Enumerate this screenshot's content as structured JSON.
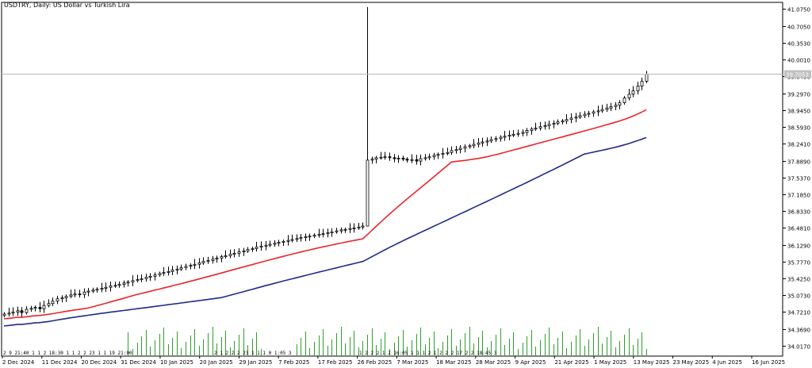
{
  "header": {
    "title": "USDTRY, Daily:  US Dollar vs Turkish Lira"
  },
  "chart_data": {
    "type": "candlestick",
    "title": "USDTRY, Daily:  US Dollar vs Turkish Lira",
    "price_axis_ticks": [
      "41.0750",
      "40.7050",
      "40.3530",
      "40.0010",
      "39.6490",
      "39.2970",
      "38.9450",
      "38.5930",
      "38.2410",
      "37.8890",
      "37.5370",
      "37.1850",
      "36.8330",
      "36.4810",
      "36.1290",
      "35.7770",
      "35.4250",
      "35.0730",
      "34.7210",
      "34.3690",
      "34.0170"
    ],
    "date_axis_labels": [
      "2 Dec 2024",
      "11 Dec 2024",
      "20 Dec 2024",
      "31 Dec 2024",
      "10 Jan 2025",
      "20 Jan 2025",
      "29 Jan 2025",
      "7 Feb 2025",
      "17 Feb 2025",
      "26 Feb 2025",
      "7 Mar 2025",
      "18 Mar 2025",
      "28 Mar 2025",
      "9 Apr 2025",
      "21 Apr 2025",
      "1 May 2025",
      "13 May 2025",
      "23 May 2025",
      "4 Jun 2025",
      "16 Jun 2025"
    ],
    "current_price_label": "39.7053",
    "current_price": 39.7053,
    "ylim": [
      33.8,
      41.2
    ],
    "grid": false,
    "indicators": [
      {
        "type": "moving-average",
        "color": "#e8262d"
      },
      {
        "type": "moving-average",
        "color": "#1f2a8c"
      }
    ],
    "volume_color": "#2e9e2e",
    "bar_group_labels": [
      "2 9 21:40 1 1 2 18:30 1 1 2 2 23 1 1 19 21:00",
      "2 1 2 2 2 23 1 1 1 0 1:05 3",
      "1 2 2 2 1 2 16:05 1 1 1 2 1 2 2 2 17 2 2 18:45 3"
    ],
    "close_series": [
      34.68,
      34.7,
      34.72,
      34.75,
      34.71,
      34.78,
      34.8,
      34.82,
      34.79,
      34.86,
      34.9,
      34.95,
      35.0,
      35.02,
      35.05,
      35.08,
      35.1,
      35.09,
      35.14,
      35.16,
      35.18,
      35.2,
      35.22,
      35.24,
      35.27,
      35.28,
      35.3,
      35.33,
      35.35,
      35.38,
      35.4,
      35.42,
      35.45,
      35.47,
      35.5,
      35.53,
      35.55,
      35.57,
      35.6,
      35.62,
      35.65,
      35.68,
      35.7,
      35.72,
      35.75,
      35.78,
      35.8,
      35.83,
      35.85,
      35.88,
      35.9,
      35.93,
      35.95,
      35.98,
      36.0,
      36.03,
      36.05,
      36.08,
      36.1,
      36.12,
      36.14,
      36.16,
      36.18,
      36.2,
      36.22,
      36.24,
      36.26,
      36.28,
      36.3,
      36.31,
      36.33,
      36.35,
      36.36,
      36.38,
      36.4,
      36.42,
      36.44,
      36.45,
      36.47,
      36.48,
      36.5,
      36.52,
      37.9,
      37.92,
      37.95,
      37.96,
      37.97,
      37.95,
      37.93,
      37.94,
      37.92,
      37.9,
      37.91,
      37.88,
      37.93,
      37.95,
      37.97,
      38.0,
      38.02,
      38.04,
      38.06,
      38.1,
      38.12,
      38.15,
      38.18,
      38.2,
      38.23,
      38.26,
      38.28,
      38.3,
      38.33,
      38.35,
      38.38,
      38.4,
      38.42,
      38.44,
      38.46,
      38.48,
      38.52,
      38.55,
      38.57,
      38.6,
      38.62,
      38.65,
      38.67,
      38.7,
      38.72,
      38.75,
      38.78,
      38.8,
      38.83,
      38.86,
      38.88,
      38.91,
      38.93,
      38.96,
      38.99,
      39.02,
      39.05,
      39.1,
      39.2,
      39.28,
      39.35,
      39.45,
      39.55,
      39.7
    ]
  }
}
